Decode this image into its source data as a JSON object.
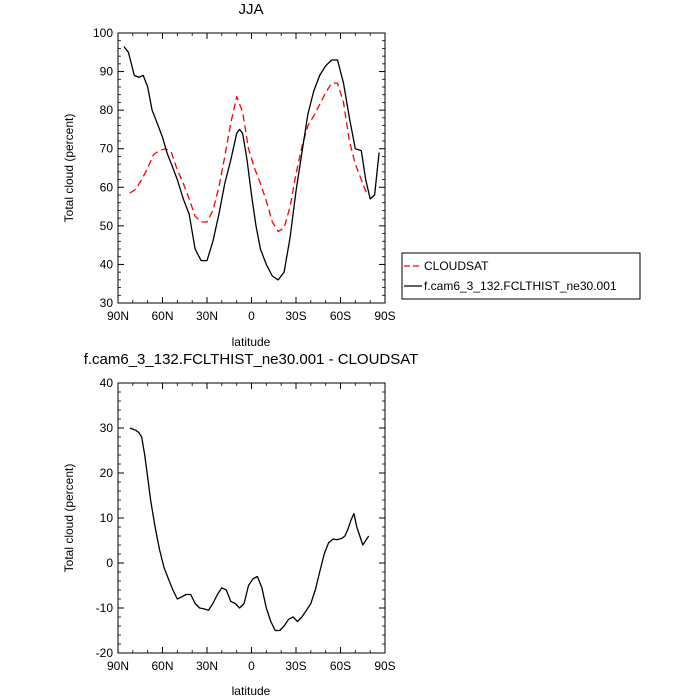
{
  "chart_data": [
    {
      "type": "line",
      "title": "JJA",
      "xlabel": "latitude",
      "ylabel": "Total cloud (percent)",
      "xlim": [
        90,
        -90
      ],
      "ylim": [
        30,
        100
      ],
      "xticks": [
        90,
        60,
        30,
        0,
        -30,
        -60,
        -90
      ],
      "xtick_labels": [
        "90N",
        "60N",
        "30N",
        "0",
        "30S",
        "60S",
        "90S"
      ],
      "yticks": [
        30,
        40,
        50,
        60,
        70,
        80,
        90,
        100
      ],
      "ytick_labels": [
        "30",
        "40",
        "50",
        "60",
        "70",
        "80",
        "90",
        "100"
      ],
      "legend_position": "outside-right",
      "series": [
        {
          "name": "CLOUDSAT",
          "color": "#ff0000",
          "dash": "dashed",
          "x": [
            82,
            78,
            74,
            70,
            66,
            62,
            58,
            54,
            50,
            46,
            42,
            38,
            34,
            30,
            26,
            22,
            18,
            14,
            10,
            6,
            2,
            -2,
            -6,
            -10,
            -14,
            -18,
            -22,
            -26,
            -30,
            -34,
            -38,
            -42,
            -46,
            -50,
            -54,
            -58,
            -62,
            -66,
            -70,
            -74,
            -78
          ],
          "y": [
            58.5,
            59.5,
            62,
            65,
            68.5,
            69.5,
            70,
            69,
            64.5,
            61,
            57,
            52.5,
            51,
            51,
            54,
            60,
            68,
            76.5,
            83.5,
            79.5,
            70,
            65,
            61,
            56.5,
            51,
            48.5,
            49.5,
            55,
            63.5,
            70.5,
            76,
            78.5,
            81.5,
            84.5,
            87,
            87,
            82,
            72,
            66,
            62,
            58
          ]
        },
        {
          "name": "f.cam6_3_132.FCLTHIST_ne30.001",
          "color": "#000000",
          "dash": "solid",
          "x": [
            86,
            83,
            79,
            76,
            73,
            70,
            67,
            64,
            60,
            57,
            54,
            50,
            46,
            42,
            38,
            34,
            30,
            26,
            22,
            18,
            14,
            10,
            8,
            6,
            3,
            0,
            -3,
            -6,
            -10,
            -14,
            -18,
            -22,
            -26,
            -30,
            -34,
            -38,
            -42,
            -46,
            -50,
            -54,
            -58,
            -62,
            -66,
            -70,
            -74,
            -77,
            -80,
            -83,
            -86
          ],
          "y": [
            96.5,
            95,
            89,
            88.5,
            89,
            86,
            80,
            77,
            73,
            69,
            66,
            62,
            57,
            53,
            44,
            41,
            41,
            46,
            53,
            61,
            67,
            74,
            75,
            74,
            67,
            58,
            50,
            44,
            40,
            37,
            36,
            38,
            47,
            59,
            69,
            79,
            85,
            89,
            91.5,
            93,
            93,
            87,
            78,
            70,
            69.5,
            62,
            57,
            58,
            69
          ]
        }
      ]
    },
    {
      "type": "line",
      "title": "f.cam6_3_132.FCLTHIST_ne30.001 - CLOUDSAT",
      "xlabel": "latitude",
      "ylabel": "Total cloud (percent)",
      "xlim": [
        90,
        -90
      ],
      "ylim": [
        -20,
        40
      ],
      "xticks": [
        90,
        60,
        30,
        0,
        -30,
        -60,
        -90
      ],
      "xtick_labels": [
        "90N",
        "60N",
        "30N",
        "0",
        "30S",
        "60S",
        "90S"
      ],
      "yticks": [
        -20,
        -10,
        0,
        10,
        20,
        30,
        40
      ],
      "ytick_labels": [
        "-20",
        "-10",
        "0",
        "10",
        "20",
        "30",
        "40"
      ],
      "series": [
        {
          "name": "",
          "color": "#000000",
          "dash": "solid",
          "x": [
            82,
            78,
            76,
            74,
            72,
            70,
            68,
            65,
            62,
            59,
            56,
            53,
            50,
            47,
            44,
            41,
            38,
            35,
            32,
            29,
            26,
            23,
            20,
            17,
            14,
            11,
            8,
            5,
            2,
            -1,
            -4,
            -7,
            -10,
            -13,
            -16,
            -19,
            -22,
            -25,
            -28,
            -31,
            -34,
            -37,
            -40,
            -43,
            -46,
            -49,
            -52,
            -55,
            -58,
            -61,
            -63,
            -65,
            -67,
            -69,
            -71,
            -73,
            -75,
            -77,
            -79
          ],
          "y": [
            30,
            29.5,
            29,
            28,
            24,
            19,
            14,
            8,
            3,
            -1,
            -3.5,
            -6,
            -8,
            -7.5,
            -7,
            -7,
            -9,
            -10,
            -10.2,
            -10.5,
            -9,
            -7,
            -5.5,
            -6,
            -8.5,
            -9,
            -10,
            -9,
            -5,
            -3.5,
            -3,
            -5.5,
            -10,
            -13,
            -15,
            -15,
            -14,
            -12.5,
            -12,
            -13,
            -12,
            -10.5,
            -9,
            -6,
            -2,
            2,
            4.5,
            5.3,
            5.2,
            5.5,
            6,
            7.5,
            9.5,
            11,
            8,
            6,
            4,
            5,
            6
          ]
        }
      ]
    }
  ]
}
